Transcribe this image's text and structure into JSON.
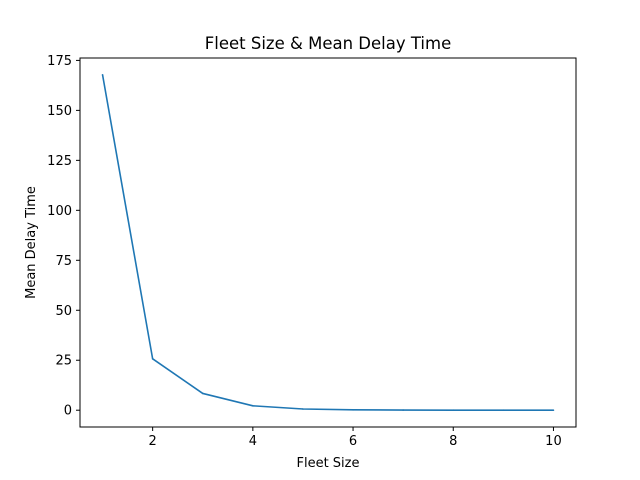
{
  "chart_data": {
    "type": "line",
    "title": "Fleet Size & Mean Delay Time",
    "xlabel": "Fleet Size",
    "ylabel": "Mean Delay Time",
    "xlim": [
      0.55,
      10.45
    ],
    "ylim": [
      -8.4,
      176.2
    ],
    "xticks": [
      2,
      4,
      6,
      8,
      10
    ],
    "yticks": [
      0,
      25,
      50,
      75,
      100,
      125,
      150,
      175
    ],
    "grid": false,
    "legend": "none",
    "colors": {
      "line": "#1f77b4",
      "axes": "#000000",
      "background": "#ffffff"
    },
    "series": [
      {
        "x": [
          1,
          2,
          3,
          4,
          5,
          6,
          7,
          8,
          9,
          10
        ],
        "values": [
          167.8,
          25.7,
          8.4,
          2.2,
          0.6,
          0.2,
          0.05,
          0.02,
          0.01,
          0.0
        ]
      }
    ]
  }
}
